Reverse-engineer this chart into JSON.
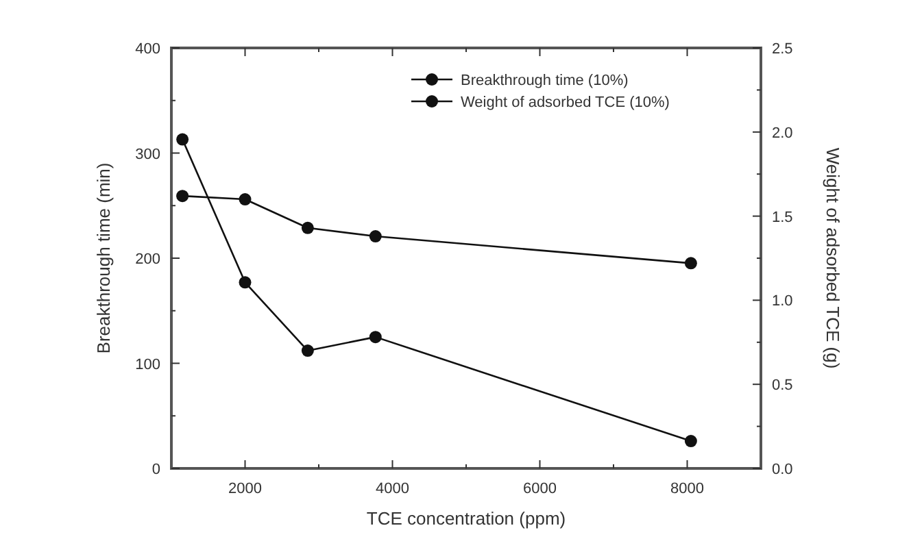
{
  "chart_data": {
    "type": "line",
    "xlabel": "TCE concentration (ppm)",
    "ylabel": "Breakthrough time (min)",
    "y2label": "Weight of adsorbed TCE (g)",
    "x": [
      1150,
      2000,
      2850,
      3770,
      8050
    ],
    "xlim": [
      1000,
      9000
    ],
    "xticks": [
      {
        "value": 2000,
        "label": "2000"
      },
      {
        "value": 3000,
        "label": null
      },
      {
        "value": 4000,
        "label": "4000"
      },
      {
        "value": 5000,
        "label": null
      },
      {
        "value": 6000,
        "label": "6000"
      },
      {
        "value": 7000,
        "label": null
      },
      {
        "value": 8000,
        "label": "8000"
      }
    ],
    "ylim": [
      0,
      400
    ],
    "yticks": [
      0,
      {
        "value": 50,
        "label": null
      },
      100,
      {
        "value": 150,
        "label": null
      },
      200,
      {
        "value": 250,
        "label": null
      },
      300,
      {
        "value": 350,
        "label": null
      },
      400
    ],
    "y2lim": [
      0,
      2.5
    ],
    "y2ticks": [
      {
        "value": 0,
        "label": "0.0"
      },
      {
        "value": 0.25,
        "label": null
      },
      {
        "value": 0.5,
        "label": "0.5"
      },
      {
        "value": 0.75,
        "label": null
      },
      {
        "value": 1,
        "label": "1.0"
      },
      {
        "value": 1.25,
        "label": null
      },
      {
        "value": 1.5,
        "label": "1.5"
      },
      {
        "value": 1.75,
        "label": null
      },
      {
        "value": 2,
        "label": "2.0"
      },
      {
        "value": 2.25,
        "label": null
      },
      {
        "value": 2.5,
        "label": "2.5"
      }
    ],
    "series": [
      {
        "name": "Breakthrough time (10%)",
        "color": "#111111",
        "values": [
          313,
          177,
          112,
          125,
          26
        ]
      },
      {
        "name": "Weight of adsorbed TCE (10%)",
        "color": "#111111",
        "values": [
          1.62,
          1.6,
          1.43,
          1.38,
          1.22
        ],
        "axis": "y2"
      }
    ],
    "marker": "circle",
    "line_style": "solid",
    "legend": "top right",
    "grid": false
  }
}
